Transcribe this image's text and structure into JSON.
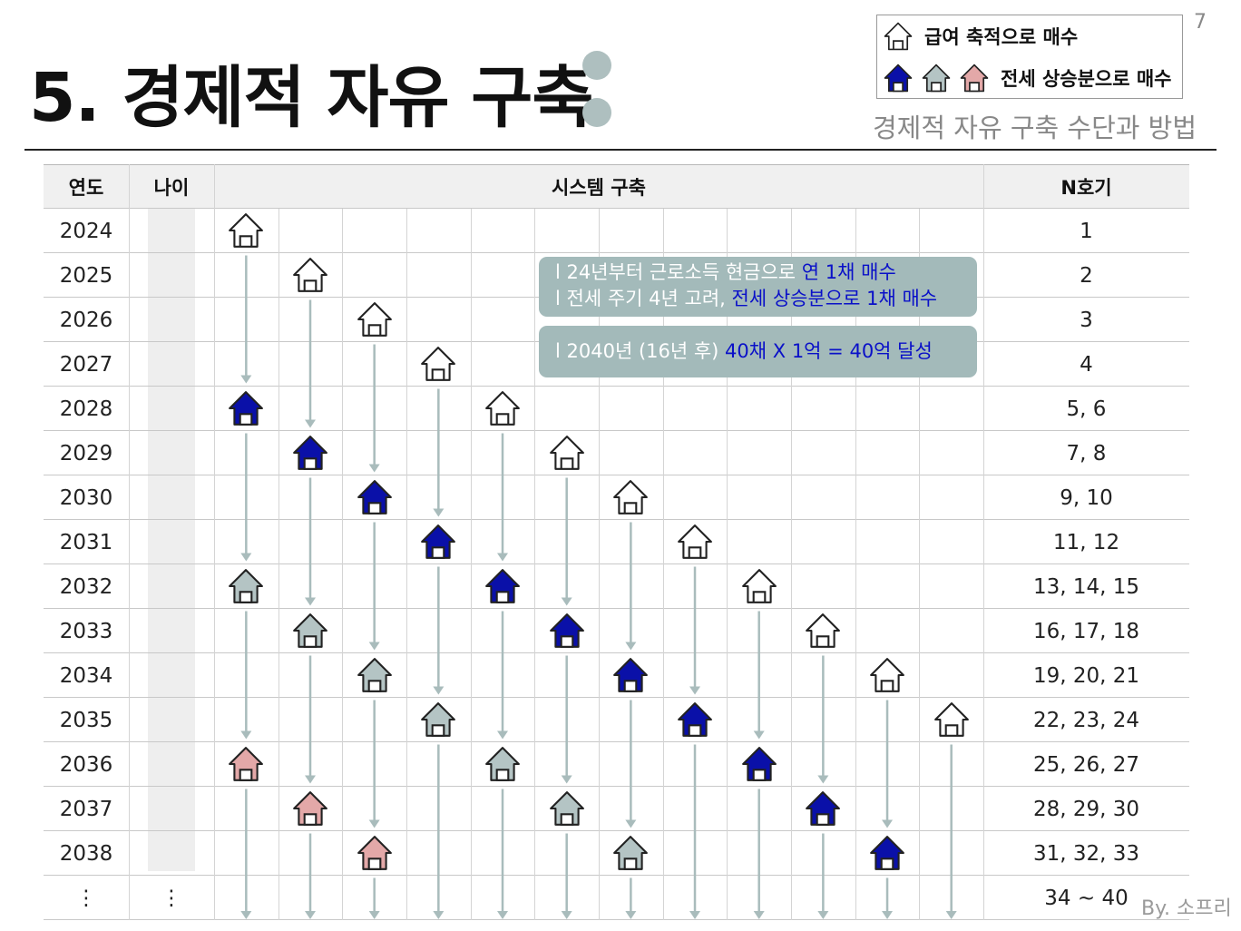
{
  "page_number": "7",
  "title": "5. 경제적 자유 구축",
  "subtitle": "경제적 자유 구축 수단과 방법",
  "legend": {
    "salary_label": "급여 축적으로 매수",
    "jeonse_label": "전세 상승분으로 매수"
  },
  "house_colors": {
    "white": "#ffffff",
    "blue": "#0a10a8",
    "gray": "#b4c4c4",
    "pink": "#e3a8a8"
  },
  "table": {
    "headers": {
      "year": "연도",
      "age": "나이",
      "system": "시스템 구축",
      "count": "N호기"
    },
    "rows": [
      {
        "year": "2024",
        "count": "1"
      },
      {
        "year": "2025",
        "count": "2"
      },
      {
        "year": "2026",
        "count": "3"
      },
      {
        "year": "2027",
        "count": "4"
      },
      {
        "year": "2028",
        "count": "5, 6"
      },
      {
        "year": "2029",
        "count": "7, 8"
      },
      {
        "year": "2030",
        "count": "9, 10"
      },
      {
        "year": "2031",
        "count": "11, 12"
      },
      {
        "year": "2032",
        "count": "13, 14, 15"
      },
      {
        "year": "2033",
        "count": "16, 17, 18"
      },
      {
        "year": "2034",
        "count": "19, 20, 21"
      },
      {
        "year": "2035",
        "count": "22, 23, 24"
      },
      {
        "year": "2036",
        "count": "25, 26, 27"
      },
      {
        "year": "2037",
        "count": "28, 29, 30"
      },
      {
        "year": "2038",
        "count": "31, 32, 33"
      }
    ],
    "last_row": {
      "year": "⋮",
      "age": "⋮",
      "count": "34 ~ 40"
    }
  },
  "callout1": {
    "line1_prefix": "l  24년부터 근로소득 현금으로 ",
    "line1_highlight": "연 1채 매수",
    "line2_prefix": "l  전세 주기 4년 고려, ",
    "line2_highlight": "전세 상승분으로 1채 매수"
  },
  "callout2": {
    "prefix": "l  2040년 (16년  후) ",
    "highlight": "40채 X 1억 = 40억 달성"
  },
  "byline": "By. 소프리"
}
